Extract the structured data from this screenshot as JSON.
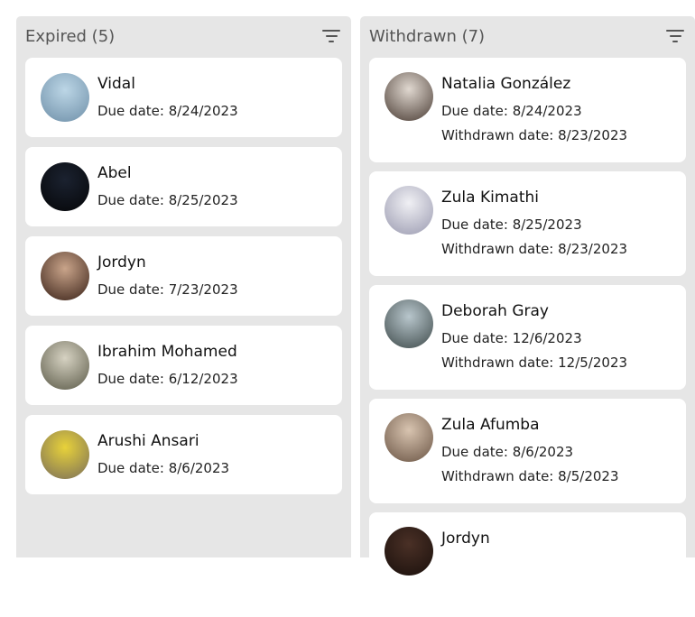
{
  "columns": [
    {
      "title": "Expired (5)",
      "items": [
        {
          "name": "Vidal",
          "due": "Due date: 8/24/2023",
          "avatar": [
            "#bcd6e6",
            "#6e8fa8"
          ]
        },
        {
          "name": "Abel",
          "due": "Due date: 8/25/2023",
          "avatar": [
            "#1b2230",
            "#050608"
          ]
        },
        {
          "name": "Jordyn",
          "due": "Due date: 7/23/2023",
          "avatar": [
            "#c9a48a",
            "#3a2218"
          ]
        },
        {
          "name": "Ibrahim Mohamed",
          "due": "Due date: 6/12/2023",
          "avatar": [
            "#d6d2c2",
            "#5b5a48"
          ]
        },
        {
          "name": "Arushi Ansari",
          "due": "Due date: 8/6/2023",
          "avatar": [
            "#e8d23a",
            "#7a6e5a"
          ]
        }
      ]
    },
    {
      "title": "Withdrawn (7)",
      "items": [
        {
          "name": "Natalia González",
          "due": "Due date: 8/24/2023",
          "withdrawn": "Withdrawn date: 8/23/2023",
          "avatar": [
            "#e0d8d0",
            "#4a3c34"
          ]
        },
        {
          "name": "Zula Kimathi",
          "due": "Due date: 8/25/2023",
          "withdrawn": "Withdrawn date: 8/23/2023",
          "avatar": [
            "#f0f0f4",
            "#9a9ab0"
          ]
        },
        {
          "name": "Deborah Gray",
          "due": "Due date: 12/6/2023",
          "withdrawn": "Withdrawn date: 12/5/2023",
          "avatar": [
            "#b8c6cc",
            "#3e4a4a"
          ]
        },
        {
          "name": "Zula Afumba",
          "due": "Due date: 8/6/2023",
          "withdrawn": "Withdrawn date: 8/5/2023",
          "avatar": [
            "#d8c4b0",
            "#6a5444"
          ]
        },
        {
          "name": "Jordyn",
          "avatar": [
            "#4a3026",
            "#1a100c"
          ]
        }
      ]
    }
  ]
}
